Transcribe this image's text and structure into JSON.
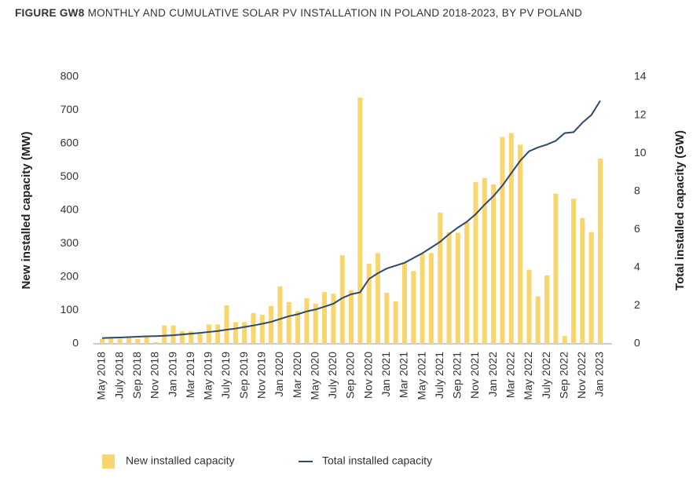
{
  "chart_data": {
    "type": "bar-line",
    "figure_label": "FIGURE GW8",
    "title": "MONTHLY AND CUMULATIVE SOLAR PV INSTALLATION IN POLAND 2018-2023, BY PV POLAND",
    "y_label": "New installed capacity (MW)",
    "y2_label": "Total installed capacity (GW)",
    "categories": [
      "May 2018",
      null,
      "July 2018",
      null,
      "Sep 2018",
      null,
      "Nov 2018",
      null,
      "Jan 2019",
      null,
      "Mar 2019",
      null,
      "May 2019",
      null,
      "July 2019",
      null,
      "Sep 2019",
      null,
      "Nov 2019",
      null,
      "Jan 2020",
      null,
      "Mar 2020",
      null,
      "May 2020",
      null,
      "July 2020",
      null,
      "Sep 2020",
      null,
      "Nov 2020",
      null,
      "Jan 2021",
      null,
      "Mar 2021",
      null,
      "May 2021",
      null,
      "July 2021",
      null,
      "Sep 2021",
      null,
      "Nov 2021",
      null,
      "Jan 2022",
      null,
      "Mar 2022",
      null,
      "May 2022",
      null,
      "July 2022",
      null,
      "Sep 2022",
      null,
      "Nov 2022",
      null,
      "Jan 2023"
    ],
    "series": [
      {
        "name": "New installed capacity",
        "type": "bar",
        "color": "#f8d66d",
        "values": [
          15,
          18,
          15,
          18,
          15,
          20,
          5,
          55,
          55,
          38,
          38,
          30,
          58,
          58,
          115,
          65,
          65,
          92,
          87,
          113,
          172,
          125,
          98,
          137,
          120,
          155,
          150,
          265,
          160,
          738,
          240,
          272,
          153,
          127,
          245,
          218,
          270,
          272,
          393,
          335,
          333,
          365,
          485,
          497,
          478,
          620,
          632,
          597,
          222,
          142,
          205,
          450,
          23,
          435,
          377,
          335,
          555
        ]
      },
      {
        "name": "Total installed capacity",
        "type": "line",
        "axis": "y2",
        "color": "#2c4a6e",
        "values": [
          0.3,
          0.32,
          0.33,
          0.35,
          0.37,
          0.39,
          0.4,
          0.42,
          0.45,
          0.49,
          0.53,
          0.57,
          0.62,
          0.67,
          0.74,
          0.8,
          0.88,
          0.96,
          1.05,
          1.15,
          1.3,
          1.45,
          1.55,
          1.7,
          1.8,
          1.95,
          2.1,
          2.4,
          2.6,
          2.7,
          3.4,
          3.7,
          3.95,
          4.1,
          4.25,
          4.5,
          4.75,
          5.05,
          5.35,
          5.75,
          6.1,
          6.4,
          6.8,
          7.3,
          7.75,
          8.3,
          8.95,
          9.6,
          10.1,
          10.3,
          10.45,
          10.65,
          11.05,
          11.1,
          11.6,
          12.0,
          12.75
        ]
      }
    ],
    "ylim": [
      0,
      800
    ],
    "yticks": [
      0,
      100,
      200,
      300,
      400,
      500,
      600,
      700,
      800
    ],
    "y2lim": [
      0,
      14
    ],
    "y2ticks": [
      0,
      2,
      4,
      6,
      8,
      10,
      12,
      14
    ],
    "legend": "bottom"
  }
}
